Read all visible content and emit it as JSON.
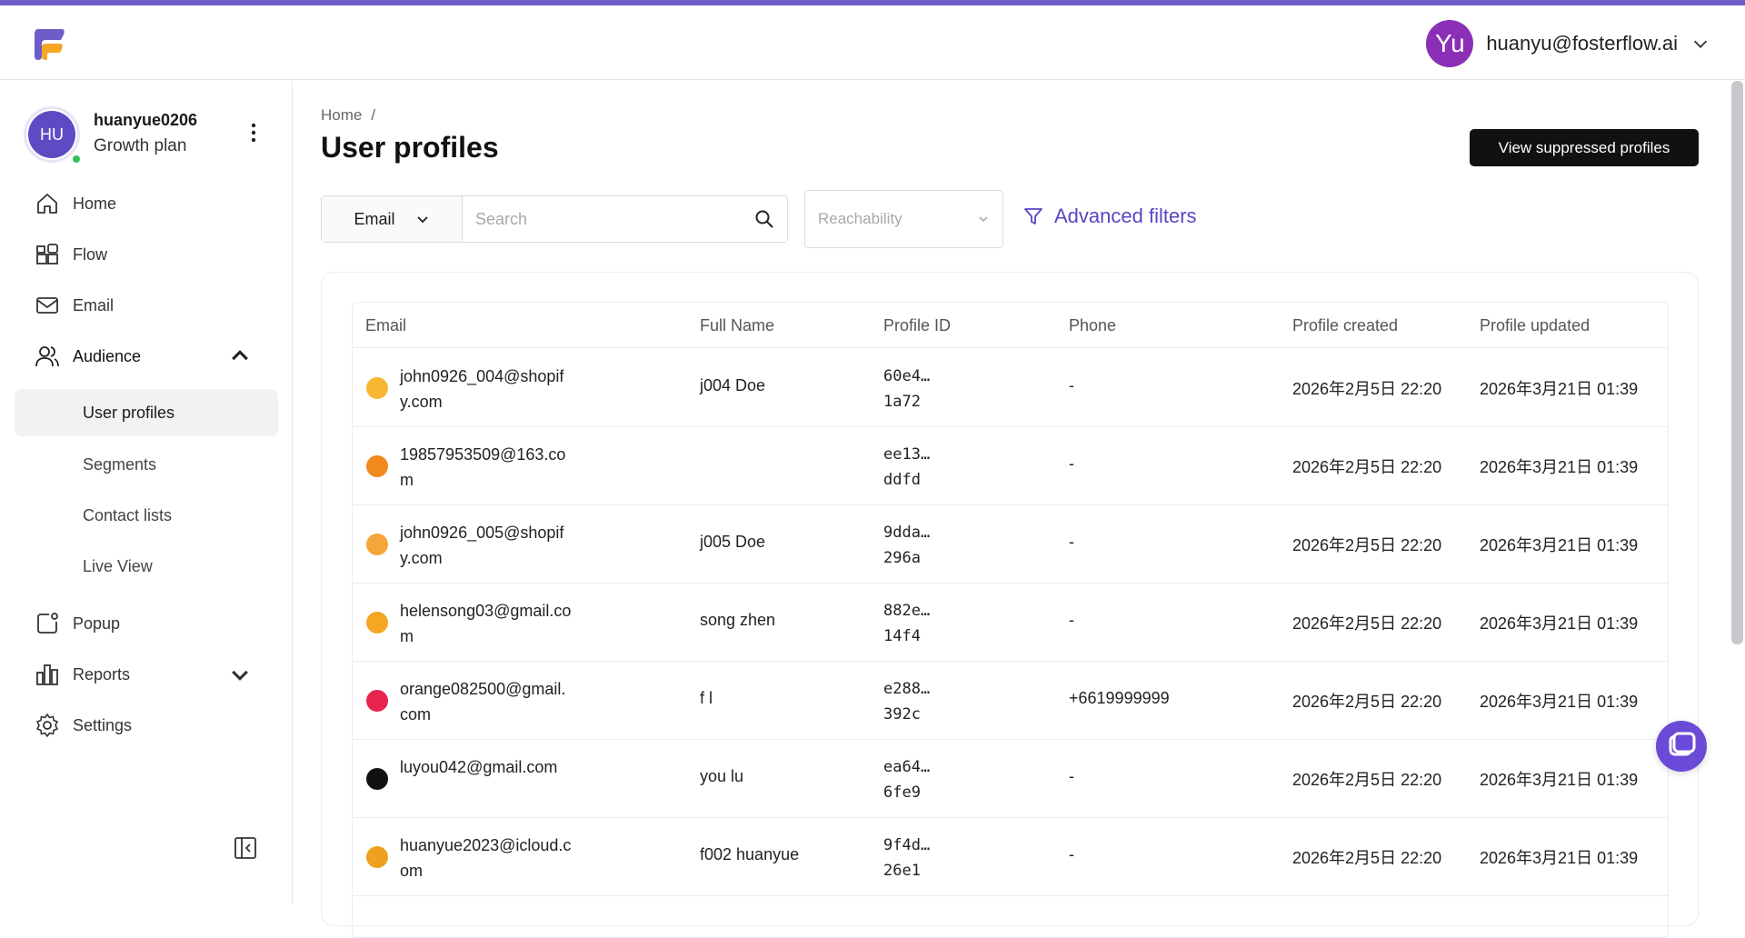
{
  "header": {
    "user_initials": "Yu",
    "user_email": "huanyu@fosterflow.ai"
  },
  "account": {
    "initials": "HU",
    "name": "huanyue0206",
    "plan": "Growth plan"
  },
  "sidebar": {
    "items": [
      {
        "label": "Home",
        "icon": "home-icon"
      },
      {
        "label": "Flow",
        "icon": "flow-icon"
      },
      {
        "label": "Email",
        "icon": "mail-icon"
      },
      {
        "label": "Audience",
        "icon": "audience-icon"
      },
      {
        "label": "Popup",
        "icon": "popup-icon"
      },
      {
        "label": "Reports",
        "icon": "reports-icon"
      },
      {
        "label": "Settings",
        "icon": "settings-icon"
      }
    ],
    "audience_sub": [
      {
        "label": "User profiles",
        "selected": true
      },
      {
        "label": "Segments"
      },
      {
        "label": "Contact lists"
      },
      {
        "label": "Live View"
      }
    ]
  },
  "page": {
    "breadcrumb_home": "Home",
    "breadcrumb_sep": "/",
    "title": "User profiles",
    "suppressed_button": "View suppressed profiles"
  },
  "filters": {
    "field_select": "Email",
    "search_placeholder": "Search",
    "reachability_placeholder": "Reachability",
    "advanced_label": "Advanced filters"
  },
  "table": {
    "columns": [
      "Email",
      "Full Name",
      "Profile ID",
      "Phone",
      "Profile created",
      "Profile updated"
    ],
    "rows": [
      {
        "email": "john0926_004@shopify.com",
        "name": "j004 Doe",
        "pid1": "60e4…",
        "pid2": "1a72",
        "phone": "-",
        "created": "2026年2月5日 22:20",
        "updated": "2026年3月21日 01:39",
        "emoji_color": "#f7b733"
      },
      {
        "email": "19857953509@163.com",
        "name": "",
        "pid1": "ee13…",
        "pid2": "ddfd",
        "phone": "-",
        "created": "2026年2月5日 22:20",
        "updated": "2026年3月21日 01:39",
        "emoji_color": "#f08a1c"
      },
      {
        "email": "john0926_005@shopify.com",
        "name": "j005 Doe",
        "pid1": "9dda…",
        "pid2": "296a",
        "phone": "-",
        "created": "2026年2月5日 22:20",
        "updated": "2026年3月21日 01:39",
        "emoji_color": "#f6a53a"
      },
      {
        "email": "helensong03@gmail.com",
        "name": "song zhen",
        "pid1": "882e…",
        "pid2": "14f4",
        "phone": "-",
        "created": "2026年2月5日 22:20",
        "updated": "2026年3月21日 01:39",
        "emoji_color": "#f5a623"
      },
      {
        "email": "orange082500@gmail.com",
        "name": "f l",
        "pid1": "e288…",
        "pid2": "392c",
        "phone": "+6619999999",
        "created": "2026年2月5日 22:20",
        "updated": "2026年3月21日 01:39",
        "emoji_color": "#e8244d"
      },
      {
        "email": "luyou042@gmail.com",
        "name": "you lu",
        "pid1": "ea64…",
        "pid2": "6fe9",
        "phone": "-",
        "created": "2026年2月5日 22:20",
        "updated": "2026年3月21日 01:39",
        "emoji_color": "#111111"
      },
      {
        "email": "huanyue2023@icloud.com",
        "name": "f002 huanyue",
        "pid1": "9f4d…",
        "pid2": "26e1",
        "phone": "-",
        "created": "2026年2月5日 22:20",
        "updated": "2026年3月21日 01:39",
        "emoji_color": "#f0a020"
      }
    ]
  },
  "colors": {
    "accent": "#5646c2",
    "top_strip": "#6e5cc8",
    "user_avatar": "#8a2fb6",
    "account_avatar": "#5e4bc4",
    "online_dot": "#2fbf57"
  }
}
